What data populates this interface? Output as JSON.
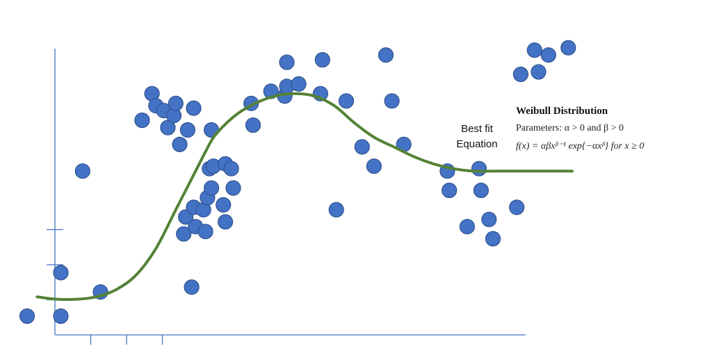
{
  "chart_data": {
    "type": "scatter",
    "title": "",
    "xlabel": "",
    "ylabel": "",
    "grid": false,
    "xlim": [
      -1.5,
      26
    ],
    "ylim": [
      -0.5,
      15
    ],
    "points": [
      [
        -1.5,
        0.0
      ],
      [
        0.2,
        0.0
      ],
      [
        0.2,
        1.8
      ],
      [
        1.3,
        6.0
      ],
      [
        2.2,
        1.0
      ],
      [
        4.3,
        8.1
      ],
      [
        4.8,
        9.2
      ],
      [
        5.0,
        8.7
      ],
      [
        5.4,
        8.5
      ],
      [
        5.6,
        7.8
      ],
      [
        5.9,
        8.3
      ],
      [
        6.2,
        7.1
      ],
      [
        6.0,
        8.8
      ],
      [
        6.6,
        7.7
      ],
      [
        6.9,
        8.6
      ],
      [
        6.4,
        3.4
      ],
      [
        6.5,
        4.1
      ],
      [
        6.8,
        1.2
      ],
      [
        6.9,
        4.5
      ],
      [
        7.0,
        3.7
      ],
      [
        7.4,
        4.4
      ],
      [
        7.5,
        3.5
      ],
      [
        7.6,
        4.9
      ],
      [
        7.7,
        6.1
      ],
      [
        7.8,
        5.3
      ],
      [
        7.8,
        7.7
      ],
      [
        7.9,
        6.2
      ],
      [
        8.4,
        4.6
      ],
      [
        8.5,
        3.9
      ],
      [
        8.5,
        6.3
      ],
      [
        8.8,
        6.1
      ],
      [
        8.9,
        5.3
      ],
      [
        9.8,
        8.8
      ],
      [
        9.9,
        7.9
      ],
      [
        10.8,
        9.3
      ],
      [
        11.5,
        9.1
      ],
      [
        11.6,
        9.5
      ],
      [
        12.2,
        9.6
      ],
      [
        11.6,
        10.5
      ],
      [
        13.3,
        9.2
      ],
      [
        13.4,
        10.6
      ],
      [
        14.6,
        8.9
      ],
      [
        14.1,
        4.4
      ],
      [
        15.4,
        7.0
      ],
      [
        16.0,
        6.2
      ],
      [
        16.6,
        10.8
      ],
      [
        16.9,
        8.9
      ],
      [
        17.5,
        7.1
      ],
      [
        19.7,
        6.0
      ],
      [
        19.8,
        5.2
      ],
      [
        20.7,
        3.7
      ],
      [
        21.3,
        6.1
      ],
      [
        21.4,
        5.2
      ],
      [
        21.8,
        4.0
      ],
      [
        22.0,
        3.2
      ],
      [
        23.2,
        4.5
      ],
      [
        23.4,
        10.0
      ],
      [
        24.1,
        11.0
      ],
      [
        24.3,
        10.1
      ],
      [
        24.8,
        10.8
      ],
      [
        25.8,
        11.1
      ]
    ],
    "fit_curve": {
      "x": [
        -1,
        0,
        1,
        2,
        3,
        4,
        5,
        6,
        7,
        7.5,
        8,
        9,
        10,
        11,
        12,
        13,
        14,
        15,
        16,
        17,
        18,
        19,
        20,
        21,
        22,
        23,
        24,
        25,
        26
      ],
      "y": [
        0.8,
        0.7,
        0.7,
        0.8,
        1.1,
        1.7,
        2.8,
        4.4,
        6.0,
        6.8,
        7.5,
        8.3,
        8.8,
        9.1,
        9.2,
        9.1,
        8.7,
        8.0,
        7.4,
        7.0,
        6.6,
        6.3,
        6.1,
        6.0,
        6.0,
        6.0,
        6.0,
        6.0,
        6.0
      ]
    },
    "x_ticks": [
      3,
      5,
      7
    ],
    "y_ticks": [
      1,
      2,
      3
    ],
    "colors": {
      "point": "#4472c4",
      "point_border": "#2f528f",
      "curve": "#548235",
      "axis": "#4472c4"
    }
  },
  "annotation": {
    "line1": "Best fit",
    "line2": "Equation"
  },
  "weibull": {
    "title": "Weibull Distribution",
    "parameters": "Parameters: α > 0 and β > 0",
    "formula": "f(x) = αβxᵝ⁻¹ exp{−αxᵝ} for x ≥ 0"
  }
}
